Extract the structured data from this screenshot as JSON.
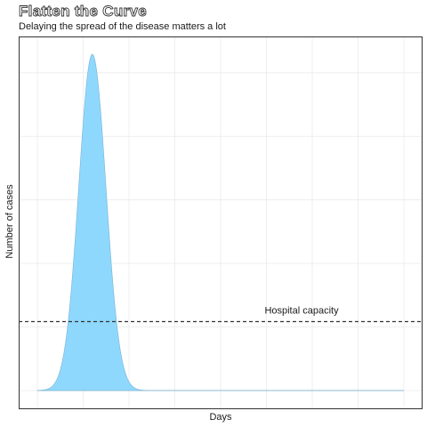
{
  "chart_data": {
    "type": "area",
    "title": "Flatten the Curve",
    "subtitle": "Delaying the spread of the disease matters a lot",
    "xlabel": "Days",
    "ylabel": "Number of cases",
    "xlim": [
      0,
      100
    ],
    "ylim": [
      0,
      100
    ],
    "x_ticks_labeled": false,
    "y_ticks_labeled": false,
    "grid": true,
    "legend": "none",
    "series": [
      {
        "peak_x": 15,
        "peak_y": 100,
        "spread_sd": 3.7,
        "fill_color": "#8fd8fd",
        "line_color": "#7fb8d8"
      }
    ],
    "reference_lines": [
      {
        "label": "Hospital capacity",
        "y": 20.5,
        "style": "dashed",
        "color": "#333333"
      }
    ],
    "colors": {
      "grid": "#ebebeb",
      "panel_border": "#333333",
      "baseline": "#bbbbbb"
    }
  }
}
